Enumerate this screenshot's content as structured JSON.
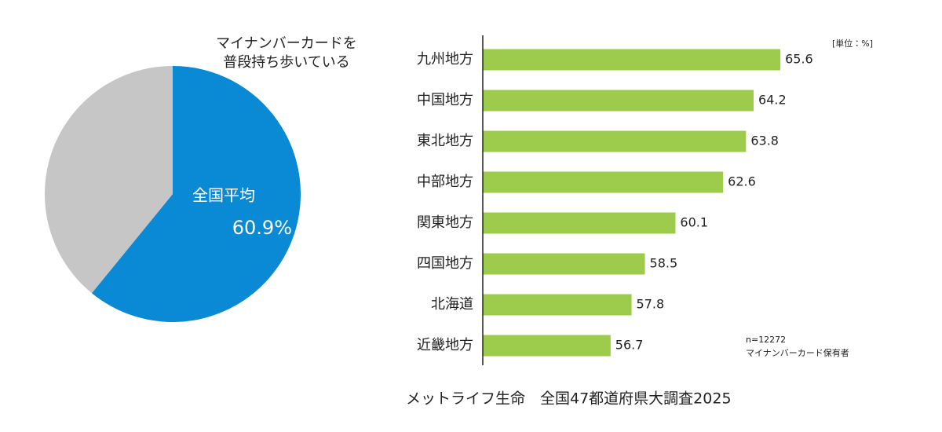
{
  "chart_data": [
    {
      "type": "pie",
      "title": [
        "マイナンバーカードを",
        "普段持ち歩いている"
      ],
      "categories": [
        "全国平均",
        null
      ],
      "values": [
        60.9,
        39.1
      ],
      "value_labels": [
        "60.9%",
        null
      ],
      "colors": [
        "#0a8ad4",
        "#c6c6c6"
      ]
    },
    {
      "type": "hbar",
      "unit": "[単位：%]",
      "categories": [
        "九州地方",
        "中国地方",
        "東北地方",
        "中部地方",
        "関東地方",
        "四国地方",
        "北海道",
        "近畿地方"
      ],
      "values": [
        65.6,
        64.2,
        63.8,
        62.6,
        60.1,
        58.5,
        57.8,
        56.7
      ],
      "color": "#9dcb4b",
      "xlim": [
        50,
        70
      ],
      "note": [
        "n=12272",
        "マイナンバーカード保有者"
      ]
    }
  ],
  "source": "メットライフ生命　全国47都道府県大調査2025"
}
